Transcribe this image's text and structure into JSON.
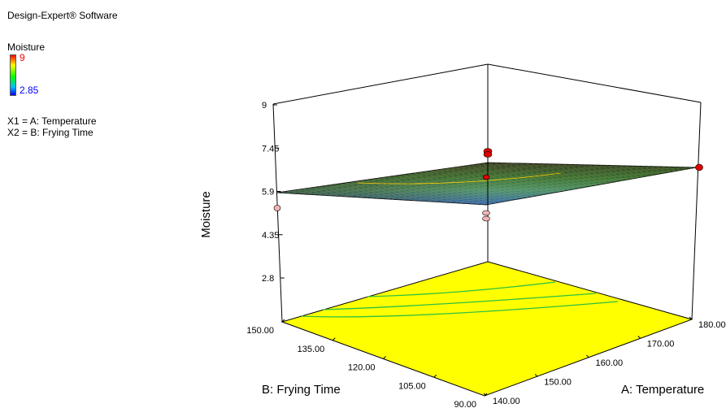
{
  "header": {
    "software": "Design-Expert® Software",
    "response": "Moisture",
    "legend_high": "9",
    "legend_low": "2.85",
    "x1_def": "X1 = A: Temperature",
    "x2_def": "X2 = B: Frying Time"
  },
  "chart_data": {
    "type": "surface3d",
    "zlabel": "Moisture",
    "xlabel": "A: Temperature",
    "ylabel": "B: Frying Time",
    "z_ticks": [
      "9",
      "7.45",
      "5.9",
      "4.35",
      "2.8"
    ],
    "z_tick_values": [
      9,
      7.45,
      5.9,
      4.35,
      2.8
    ],
    "x_ticks": [
      "140.00",
      "150.00",
      "160.00",
      "170.00",
      "180.00"
    ],
    "y_ticks": [
      "90.00",
      "105.00",
      "120.00",
      "135.00",
      "150.00"
    ],
    "zlim": [
      2.8,
      9
    ],
    "xlim": [
      140,
      180
    ],
    "ylim": [
      90,
      150
    ],
    "legend_range": [
      2.85,
      9
    ],
    "surface_corners": [
      {
        "temperature": 140,
        "time": 90,
        "moisture": 5.4
      },
      {
        "temperature": 180,
        "time": 90,
        "moisture": 6.4
      },
      {
        "temperature": 180,
        "time": 150,
        "moisture": 6.4
      },
      {
        "temperature": 140,
        "time": 150,
        "moisture": 6.0
      }
    ],
    "colors": {
      "floor": "#ffff00",
      "surface_low": "#1e5fd6",
      "surface_high": "#0f1a0f",
      "points": "#dd0000"
    }
  }
}
